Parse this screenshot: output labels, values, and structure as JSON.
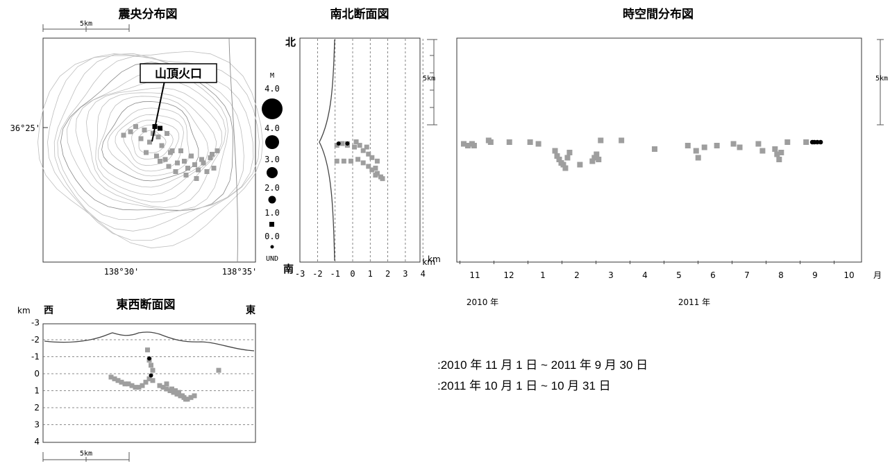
{
  "colors": {
    "earlier": "#9e9e9e",
    "latest": "#000000",
    "contour": "#bdbdbd",
    "frame": "#333333",
    "line": "#555555"
  },
  "legend": {
    "earlier": ":2010 年 11 月 1 日 ~ 2011 年 9 月 30 日",
    "latest": ":2011 年 10 月 1 日 ~ 10 月 31 日"
  },
  "chart_data": [
    {
      "type": "scatter",
      "title": "震央分布図",
      "scale_label": "5km",
      "lat_label": "36°25'",
      "lon_labels": [
        "138°30'",
        "138°35'"
      ],
      "annotation": "山頂火口",
      "magnitude_legend": {
        "title": "M",
        "labels": [
          "4.0",
          "4.0",
          "3.0",
          "2.0",
          "1.0",
          "0.0",
          "UND"
        ]
      },
      "series": [
        {
          "name": "earlier",
          "x": [
            -0.9,
            -0.4,
            0.1,
            0.4,
            0.9,
            -0.6,
            -0.1,
            0.6,
            1.2,
            -0.3,
            0.3,
            0.8,
            1.5,
            2.1,
            2.7,
            3.2,
            3.6,
            1.9,
            2.5,
            3.0,
            3.4,
            1.1,
            1.7,
            2.3,
            2.9,
            3.5,
            3.8,
            1.4,
            2.0,
            2.6,
            0.5,
            1.0,
            -1.2,
            -1.6
          ],
          "y": [
            -0.9,
            -0.7,
            -0.5,
            -0.3,
            -0.5,
            -0.2,
            0.0,
            0.2,
            0.5,
            0.6,
            0.8,
            1.0,
            1.2,
            1.5,
            1.6,
            1.7,
            1.5,
            1.1,
            1.3,
            1.2,
            0.9,
            0.6,
            0.5,
            0.8,
            1.0,
            0.7,
            0.5,
            1.7,
            1.9,
            2.1,
            1.1,
            1.4,
            -0.6,
            -0.4
          ]
        },
        {
          "name": "latest",
          "x": [
            0.2,
            0.5
          ],
          "y": [
            -0.9,
            -0.8
          ]
        }
      ]
    },
    {
      "type": "scatter",
      "title": "南北断面図",
      "north_label": "北",
      "south_label": "南",
      "scale_label": "5km",
      "depth_unit": "km",
      "x_ticks": [
        "-3",
        "-2",
        "-1",
        "0",
        "1",
        "2",
        "3",
        "4"
      ],
      "series": [
        {
          "name": "earlier",
          "x": [
            -0.9,
            -0.6,
            -0.3,
            0.1,
            0.4,
            0.6,
            0.9,
            -0.9,
            -0.5,
            -0.1,
            0.3,
            0.6,
            0.9,
            1.1,
            1.3,
            1.4,
            1.6,
            1.1,
            1.4,
            1.7,
            1.3,
            -0.3,
            0.2,
            0.8
          ],
          "y": [
            -1.4,
            -1.5,
            -1.4,
            -1.3,
            -1.4,
            -1.1,
            -0.9,
            -0.5,
            -0.5,
            -0.5,
            -0.6,
            -0.4,
            -0.2,
            0.0,
            -0.1,
            0.2,
            0.4,
            -0.7,
            -0.5,
            0.5,
            0.3,
            -1.5,
            -1.6,
            -1.3
          ]
        },
        {
          "name": "latest",
          "x": [
            -0.8,
            -0.3
          ],
          "y": [
            -1.5,
            -1.5
          ]
        }
      ]
    },
    {
      "type": "scatter",
      "title": "時空間分布図",
      "scale_label": "5km",
      "depth_unit": "km",
      "x_ticks": [
        "11",
        "12",
        "1",
        "2",
        "3",
        "4",
        "5",
        "6",
        "7",
        "8",
        "9",
        "10"
      ],
      "x_unit": "月",
      "year_labels": [
        "2010 年",
        "2011 年"
      ],
      "series": [
        {
          "name": "earlier",
          "x": [
            0.1,
            0.2,
            0.3,
            0.35,
            0.7,
            0.75,
            1.2,
            1.7,
            1.9,
            2.3,
            2.35,
            2.4,
            2.45,
            2.5,
            2.55,
            2.6,
            2.65,
            2.9,
            3.2,
            3.25,
            3.3,
            3.35,
            3.4,
            3.9,
            4.7,
            5.5,
            5.7,
            5.75,
            5.9,
            6.2,
            6.6,
            6.75,
            7.2,
            7.3,
            7.6,
            7.65,
            7.7,
            7.75,
            7.9,
            8.35
          ],
          "y": [
            -1.4,
            -1.3,
            -1.4,
            -1.3,
            -1.6,
            -1.5,
            -1.5,
            -1.5,
            -1.4,
            -1.0,
            -0.7,
            -0.5,
            -0.3,
            -0.2,
            0.0,
            -0.6,
            -0.9,
            -0.2,
            -0.4,
            -0.6,
            -0.8,
            -0.5,
            -1.6,
            -1.6,
            -1.1,
            -1.3,
            -1.0,
            -0.6,
            -1.2,
            -1.3,
            -1.4,
            -1.2,
            -1.4,
            -1.0,
            -1.1,
            -0.8,
            -0.5,
            -0.9,
            -1.5,
            -1.5
          ]
        },
        {
          "name": "latest",
          "x": [
            8.5,
            8.55,
            8.62,
            8.7
          ],
          "y": [
            -1.5,
            -1.5,
            -1.5,
            -1.5
          ]
        }
      ]
    },
    {
      "type": "scatter",
      "title": "東西断面図",
      "west_label": "西",
      "east_label": "東",
      "depth_unit": "km",
      "scale_label": "5km",
      "y_ticks": [
        "-3",
        "-2",
        "-1",
        "0",
        "1",
        "2",
        "3",
        "4"
      ],
      "ylim": [
        -3,
        4
      ],
      "series": [
        {
          "name": "earlier",
          "x": [
            -1.2,
            -1.0,
            -0.8,
            -0.6,
            -0.4,
            -0.2,
            0.0,
            0.2,
            0.4,
            0.6,
            0.8,
            1.0,
            1.2,
            1.6,
            1.8,
            2.0,
            2.2,
            2.4,
            2.6,
            2.8,
            3.0,
            3.2,
            3.4,
            3.6,
            2.3,
            2.5,
            2.7,
            2.9,
            3.1,
            0.9,
            1.0,
            1.1,
            1.2,
            5.0,
            2.0
          ],
          "y": [
            0.2,
            0.3,
            0.4,
            0.5,
            0.6,
            0.6,
            0.7,
            0.8,
            0.8,
            0.7,
            0.5,
            0.3,
            -0.2,
            0.7,
            0.8,
            0.9,
            1.0,
            1.1,
            1.2,
            1.3,
            1.4,
            1.5,
            1.4,
            1.3,
            0.9,
            1.0,
            1.1,
            1.3,
            1.5,
            -1.4,
            -0.8,
            -0.5,
            0.4,
            -0.2,
            0.6
          ]
        },
        {
          "name": "latest",
          "x": [
            1.0,
            1.1
          ],
          "y": [
            -0.9,
            0.1
          ]
        }
      ]
    }
  ]
}
